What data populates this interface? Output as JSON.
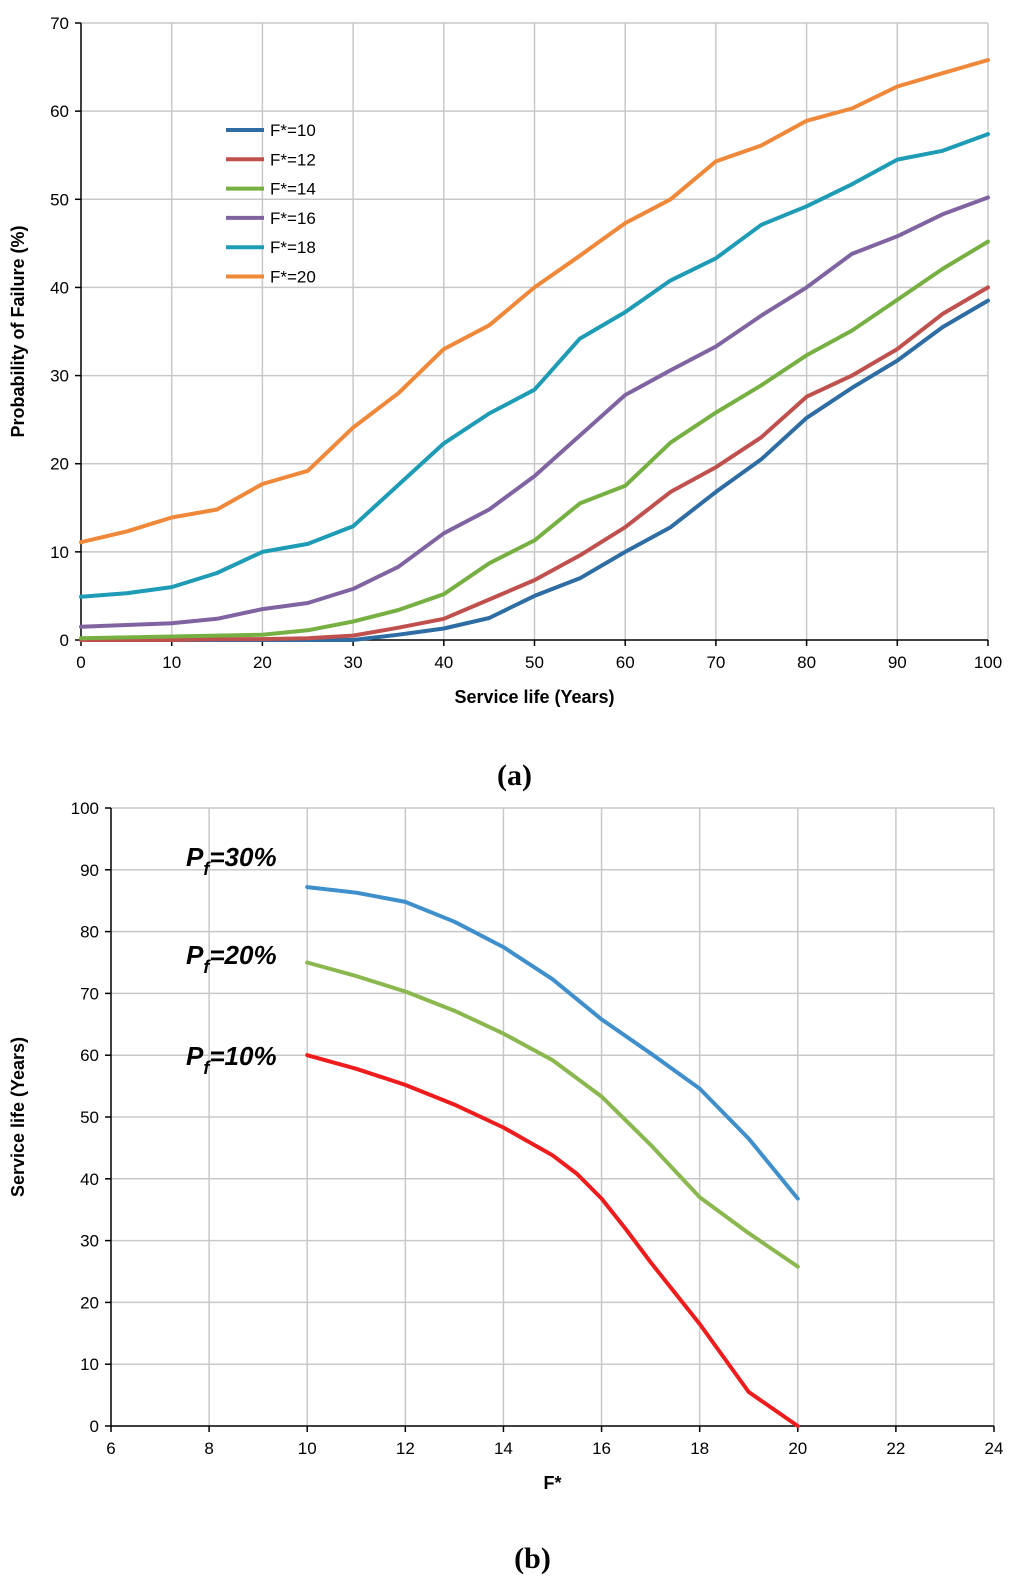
{
  "chart_data": [
    {
      "type": "line",
      "panel_label": "(a)",
      "xlabel": "Service life (Years)",
      "ylabel": "Probability of Failure (%)",
      "xlim": [
        0,
        100
      ],
      "ylim": [
        0,
        70
      ],
      "xticks": [
        0,
        10,
        20,
        30,
        40,
        50,
        60,
        70,
        80,
        90,
        100
      ],
      "yticks": [
        0,
        10,
        20,
        30,
        40,
        50,
        60,
        70
      ],
      "grid": true,
      "legend": "upper-left",
      "x": [
        0,
        5,
        10,
        15,
        20,
        25,
        30,
        35,
        40,
        45,
        50,
        55,
        60,
        65,
        70,
        75,
        80,
        85,
        90,
        95,
        100
      ],
      "series": [
        {
          "name": "F*=10",
          "color": "#2e6ca4",
          "values": [
            0,
            0,
            0,
            0,
            0,
            0,
            0,
            0.6,
            1.3,
            2.5,
            5,
            7,
            10,
            12.8,
            16.8,
            20.5,
            25.2,
            28.6,
            31.7,
            35.5,
            38.5
          ]
        },
        {
          "name": "F*=12",
          "color": "#c0504d",
          "values": [
            0,
            0,
            0,
            0.1,
            0.1,
            0.2,
            0.5,
            1.4,
            2.4,
            4.6,
            6.8,
            9.6,
            12.8,
            16.8,
            19.6,
            23,
            27.6,
            30,
            33,
            37,
            40
          ]
        },
        {
          "name": "F*=14",
          "color": "#77b042",
          "values": [
            0.2,
            0.3,
            0.4,
            0.5,
            0.6,
            1.1,
            2.1,
            3.4,
            5.2,
            8.7,
            11.3,
            15.5,
            17.5,
            22.4,
            25.8,
            28.9,
            32.3,
            35.1,
            38.6,
            42.1,
            45.2
          ]
        },
        {
          "name": "F*=16",
          "color": "#8064a2",
          "values": [
            1.5,
            1.7,
            1.9,
            2.4,
            3.5,
            4.2,
            5.8,
            8.3,
            12.1,
            14.8,
            18.6,
            23.2,
            27.8,
            30.6,
            33.3,
            36.8,
            40,
            43.8,
            45.8,
            48.3,
            50.2
          ]
        },
        {
          "name": "F*=18",
          "color": "#1e9bb5",
          "values": [
            4.9,
            5.3,
            6,
            7.6,
            10,
            10.9,
            12.9,
            17.6,
            22.3,
            25.7,
            28.4,
            34.2,
            37.2,
            40.8,
            43.3,
            47.1,
            49.2,
            51.7,
            54.5,
            55.5,
            57.4
          ]
        },
        {
          "name": "F*=20",
          "color": "#f0883a",
          "values": [
            11.1,
            12.3,
            13.9,
            14.8,
            17.7,
            19.2,
            24.1,
            28,
            33,
            35.7,
            40,
            43.6,
            47.3,
            50,
            54.3,
            56.1,
            58.9,
            60.3,
            62.8,
            64.3,
            65.8
          ]
        }
      ]
    },
    {
      "type": "line",
      "panel_label": "(b)",
      "xlabel": "F*",
      "ylabel": "Service life (Years)",
      "xlim": [
        6,
        24
      ],
      "ylim": [
        0,
        100
      ],
      "xticks": [
        6,
        8,
        10,
        12,
        14,
        16,
        18,
        20,
        22,
        24
      ],
      "yticks": [
        0,
        10,
        20,
        30,
        40,
        50,
        60,
        70,
        80,
        90,
        100
      ],
      "grid": true,
      "legend": "none",
      "series": [
        {
          "name": "Pf=30%",
          "label_italic": "P",
          "label_sub": "f",
          "label_rest": "=30%",
          "color": "#3f8fcc",
          "x": [
            10,
            11,
            12,
            13,
            14,
            15,
            16,
            17,
            18,
            19,
            20
          ],
          "values": [
            87.2,
            86.3,
            84.8,
            81.6,
            77.5,
            72.3,
            65.8,
            60.3,
            54.6,
            46.5,
            36.8
          ]
        },
        {
          "name": "Pf=20%",
          "label_italic": "P",
          "label_sub": "f",
          "label_rest": "=20%",
          "color": "#8ab84f",
          "x": [
            10,
            11,
            12,
            13,
            14,
            15,
            16,
            17,
            18,
            19,
            20
          ],
          "values": [
            75,
            72.8,
            70.3,
            67.2,
            63.5,
            59.2,
            53.3,
            45.5,
            37,
            31.2,
            25.8
          ]
        },
        {
          "name": "Pf=10%",
          "label_italic": "P",
          "label_sub": "f",
          "label_rest": "=10%",
          "color": "#ee1c1c",
          "x": [
            10,
            11,
            12,
            13,
            14,
            15,
            15.5,
            16,
            16.5,
            17,
            18,
            19,
            20
          ],
          "values": [
            60,
            57.8,
            55.2,
            52,
            48.3,
            43.8,
            40.8,
            36.8,
            31.8,
            26.5,
            16.5,
            5.5,
            0
          ]
        }
      ]
    }
  ]
}
